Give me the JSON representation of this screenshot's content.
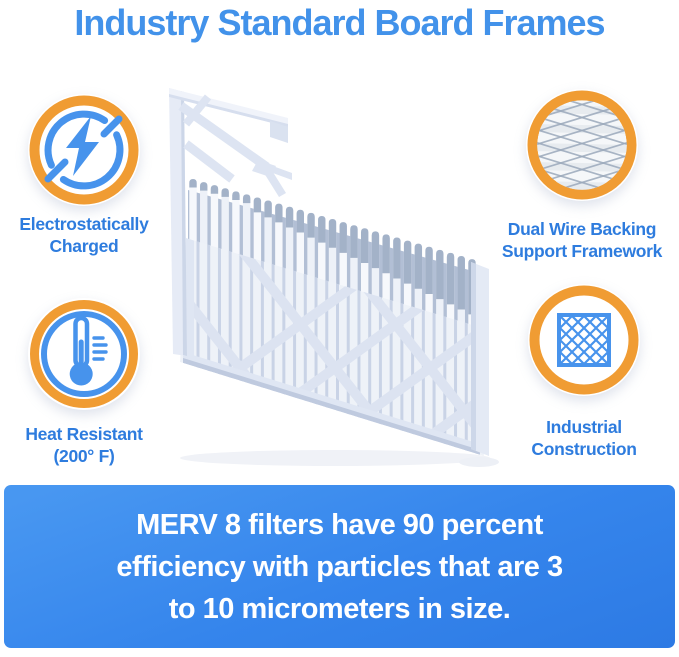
{
  "title": "Industry Standard Board Frames",
  "features": {
    "electrostatic": {
      "line1": "Electrostatically",
      "line2": "Charged"
    },
    "wire_backing": {
      "line1": "Dual Wire Backing",
      "line2": "Support Framework"
    },
    "heat_resistant": {
      "line1": "Heat Resistant",
      "line2": "(200° F)"
    },
    "industrial": {
      "line1": "Industrial",
      "line2": "Construction"
    }
  },
  "banner": {
    "line1": "MERV 8 filters have 90 percent",
    "line2": "efficiency with particles that are 3",
    "line3": "to 10 micrometers in size."
  },
  "colors": {
    "accent_orange": "#F09C33",
    "icon_blue": "#4793EC",
    "title_blue": "#4292EA",
    "label_blue": "#2E7CDE",
    "banner_blue_light": "#4897F1",
    "banner_blue_dark": "#2D7AE4"
  }
}
